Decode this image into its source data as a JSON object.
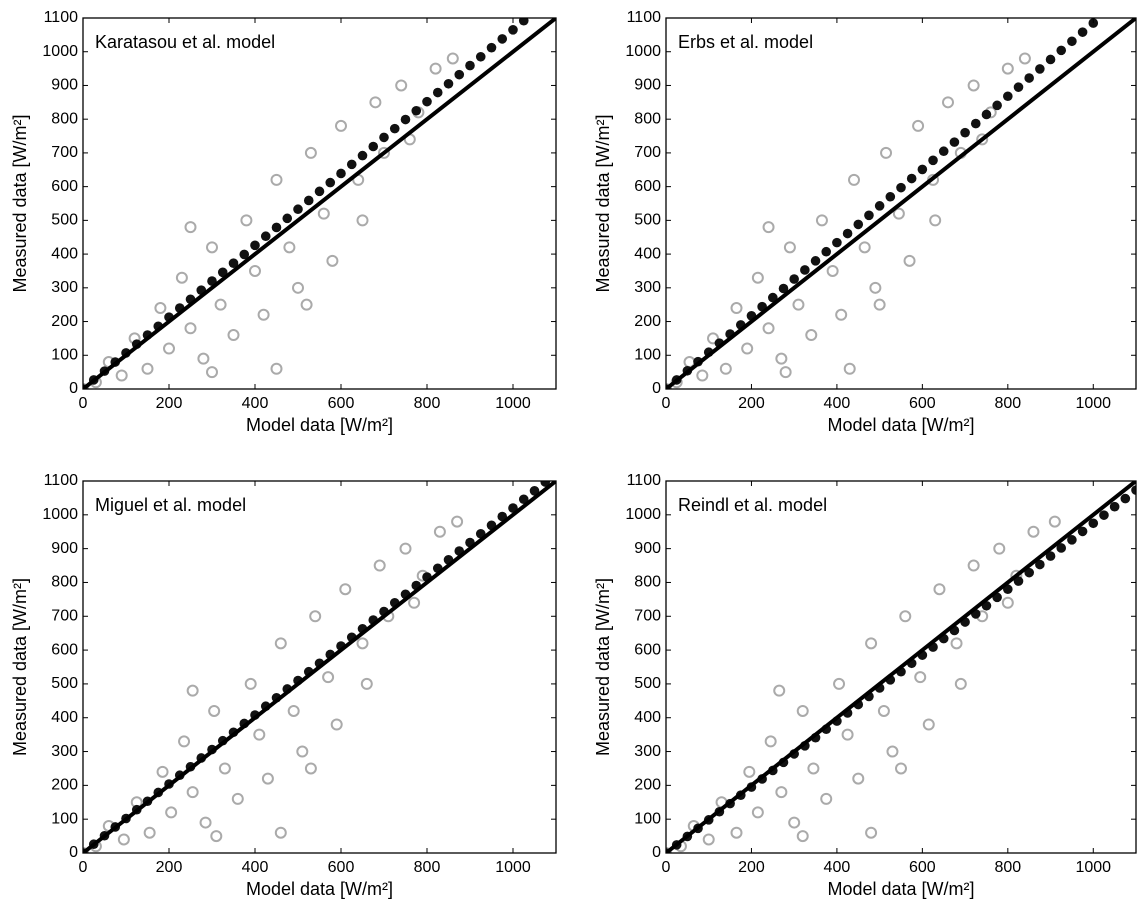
{
  "chart_data": [
    {
      "type": "scatter",
      "annotation": "Karatasou et al. model",
      "x_label": "Model data [W/m²]",
      "y_label": "Measured data [W/m²]",
      "xlim": [
        0,
        1100
      ],
      "ylim": [
        0,
        1100
      ],
      "xticks": [
        0,
        200,
        400,
        600,
        800,
        1000
      ],
      "yticks": [
        0,
        100,
        200,
        300,
        400,
        500,
        600,
        700,
        800,
        900,
        1000,
        1100
      ],
      "series": [
        {
          "style": "open-circle",
          "color": "#aaaaaa",
          "x": [
            0,
            30,
            60,
            90,
            120,
            150,
            180,
            200,
            230,
            250,
            280,
            300,
            320,
            350,
            380,
            400,
            420,
            450,
            480,
            500,
            530,
            560,
            580,
            600,
            640,
            680,
            700,
            740,
            780,
            820,
            860,
            450,
            300,
            760,
            250,
            520,
            650
          ],
          "values": [
            0,
            20,
            80,
            40,
            150,
            60,
            240,
            120,
            330,
            180,
            90,
            420,
            250,
            160,
            500,
            350,
            220,
            620,
            420,
            300,
            700,
            520,
            380,
            780,
            620,
            850,
            700,
            900,
            820,
            950,
            980,
            60,
            50,
            740,
            480,
            250,
            500
          ]
        },
        {
          "style": "filled-dot",
          "color": "#111111",
          "x": [
            0,
            25,
            50,
            75,
            100,
            125,
            150,
            175,
            200,
            225,
            250,
            275,
            300,
            325,
            350,
            375,
            400,
            425,
            450,
            475,
            500,
            525,
            550,
            575,
            600,
            625,
            650,
            675,
            700,
            725,
            750,
            775,
            800,
            825,
            850,
            875,
            900,
            925,
            950,
            975,
            1000,
            1025
          ],
          "values": [
            0,
            27,
            53,
            80,
            107,
            133,
            160,
            186,
            213,
            240,
            266,
            293,
            320,
            346,
            373,
            399,
            426,
            453,
            479,
            506,
            533,
            559,
            586,
            612,
            639,
            666,
            692,
            719,
            746,
            772,
            799,
            825,
            852,
            879,
            905,
            932,
            959,
            985,
            1012,
            1038,
            1065,
            1092
          ]
        },
        {
          "style": "solid-line",
          "color": "#000000",
          "x": [
            0,
            1100
          ],
          "values": [
            0,
            1100
          ]
        }
      ]
    },
    {
      "type": "scatter",
      "annotation": "Erbs et al. model",
      "x_label": "Model data [W/m²]",
      "y_label": "Measured data [W/m²]",
      "xlim": [
        0,
        1100
      ],
      "ylim": [
        0,
        1100
      ],
      "xticks": [
        0,
        200,
        400,
        600,
        800,
        1000
      ],
      "yticks": [
        0,
        100,
        200,
        300,
        400,
        500,
        600,
        700,
        800,
        900,
        1000,
        1100
      ],
      "series": [
        {
          "style": "open-circle",
          "color": "#aaaaaa",
          "x": [
            0,
            25,
            55,
            85,
            110,
            140,
            165,
            190,
            215,
            240,
            270,
            290,
            310,
            340,
            365,
            390,
            410,
            440,
            465,
            490,
            515,
            545,
            570,
            590,
            625,
            660,
            690,
            720,
            760,
            800,
            840,
            430,
            280,
            740,
            240,
            500,
            630
          ],
          "values": [
            0,
            20,
            80,
            40,
            150,
            60,
            240,
            120,
            330,
            180,
            90,
            420,
            250,
            160,
            500,
            350,
            220,
            620,
            420,
            300,
            700,
            520,
            380,
            780,
            620,
            850,
            700,
            900,
            820,
            950,
            980,
            60,
            50,
            740,
            480,
            250,
            500
          ]
        },
        {
          "style": "filled-dot",
          "color": "#111111",
          "x": [
            0,
            25,
            50,
            75,
            100,
            125,
            150,
            175,
            200,
            225,
            250,
            275,
            300,
            325,
            350,
            375,
            400,
            425,
            450,
            475,
            500,
            525,
            550,
            575,
            600,
            625,
            650,
            675,
            700,
            725,
            750,
            775,
            800,
            825,
            850,
            875,
            900,
            925,
            950,
            975,
            1000
          ],
          "values": [
            0,
            27,
            54,
            81,
            109,
            136,
            163,
            190,
            217,
            244,
            271,
            298,
            326,
            353,
            380,
            407,
            434,
            461,
            488,
            515,
            543,
            570,
            597,
            624,
            651,
            678,
            705,
            732,
            760,
            787,
            814,
            841,
            868,
            895,
            922,
            949,
            977,
            1004,
            1031,
            1058,
            1085
          ]
        },
        {
          "style": "solid-line",
          "color": "#000000",
          "x": [
            0,
            1100
          ],
          "values": [
            0,
            1100
          ]
        }
      ]
    },
    {
      "type": "scatter",
      "annotation": "Miguel et al. model",
      "x_label": "Model data [W/m²]",
      "y_label": "Measured data [W/m²]",
      "xlim": [
        0,
        1100
      ],
      "ylim": [
        0,
        1100
      ],
      "xticks": [
        0,
        200,
        400,
        600,
        800,
        1000
      ],
      "yticks": [
        0,
        100,
        200,
        300,
        400,
        500,
        600,
        700,
        800,
        900,
        1000,
        1100
      ],
      "series": [
        {
          "style": "open-circle",
          "color": "#aaaaaa",
          "x": [
            0,
            30,
            60,
            95,
            125,
            155,
            185,
            205,
            235,
            255,
            285,
            305,
            330,
            360,
            390,
            410,
            430,
            460,
            490,
            510,
            540,
            570,
            590,
            610,
            650,
            690,
            710,
            750,
            790,
            830,
            870,
            460,
            310,
            770,
            255,
            530,
            660
          ],
          "values": [
            0,
            20,
            80,
            40,
            150,
            60,
            240,
            120,
            330,
            180,
            90,
            420,
            250,
            160,
            500,
            350,
            220,
            620,
            420,
            300,
            700,
            520,
            380,
            780,
            620,
            850,
            700,
            900,
            820,
            950,
            980,
            60,
            50,
            740,
            480,
            250,
            500
          ]
        },
        {
          "style": "filled-dot",
          "color": "#111111",
          "x": [
            0,
            25,
            50,
            75,
            100,
            125,
            150,
            175,
            200,
            225,
            250,
            275,
            300,
            325,
            350,
            375,
            400,
            425,
            450,
            475,
            500,
            525,
            550,
            575,
            600,
            625,
            650,
            675,
            700,
            725,
            750,
            775,
            800,
            825,
            850,
            875,
            900,
            925,
            950,
            975,
            1000,
            1025,
            1050,
            1075
          ],
          "values": [
            0,
            26,
            51,
            77,
            102,
            128,
            153,
            179,
            204,
            230,
            255,
            281,
            306,
            332,
            357,
            383,
            408,
            434,
            459,
            485,
            510,
            536,
            561,
            587,
            612,
            638,
            663,
            689,
            714,
            740,
            765,
            791,
            816,
            842,
            867,
            893,
            918,
            944,
            969,
            995,
            1020,
            1046,
            1071,
            1097
          ]
        },
        {
          "style": "solid-line",
          "color": "#000000",
          "x": [
            0,
            1100
          ],
          "values": [
            0,
            1100
          ]
        }
      ]
    },
    {
      "type": "scatter",
      "annotation": "Reindl et al. model",
      "x_label": "Model data [W/m²]",
      "y_label": "Measured data [W/m²]",
      "xlim": [
        0,
        1100
      ],
      "ylim": [
        0,
        1100
      ],
      "xticks": [
        0,
        200,
        400,
        600,
        800,
        1000
      ],
      "yticks": [
        0,
        100,
        200,
        300,
        400,
        500,
        600,
        700,
        800,
        900,
        1000,
        1100
      ],
      "series": [
        {
          "style": "open-circle",
          "color": "#aaaaaa",
          "x": [
            0,
            35,
            65,
            100,
            130,
            165,
            195,
            215,
            245,
            270,
            300,
            320,
            345,
            375,
            405,
            425,
            450,
            480,
            510,
            530,
            560,
            595,
            615,
            640,
            680,
            720,
            740,
            780,
            820,
            860,
            910,
            480,
            320,
            800,
            265,
            550,
            690
          ],
          "values": [
            0,
            20,
            80,
            40,
            150,
            60,
            240,
            120,
            330,
            180,
            90,
            420,
            250,
            160,
            500,
            350,
            220,
            620,
            420,
            300,
            700,
            520,
            380,
            780,
            620,
            850,
            700,
            900,
            820,
            950,
            980,
            60,
            50,
            740,
            480,
            250,
            500
          ]
        },
        {
          "style": "filled-dot",
          "color": "#111111",
          "x": [
            0,
            25,
            50,
            75,
            100,
            125,
            150,
            175,
            200,
            225,
            250,
            275,
            300,
            325,
            350,
            375,
            400,
            425,
            450,
            475,
            500,
            525,
            550,
            575,
            600,
            625,
            650,
            675,
            700,
            725,
            750,
            775,
            800,
            825,
            850,
            875,
            900,
            925,
            950,
            975,
            1000,
            1025,
            1050,
            1075,
            1100
          ],
          "values": [
            0,
            24,
            49,
            73,
            98,
            122,
            146,
            171,
            195,
            219,
            244,
            268,
            293,
            317,
            341,
            366,
            390,
            414,
            439,
            463,
            488,
            512,
            536,
            561,
            585,
            609,
            634,
            658,
            683,
            707,
            731,
            756,
            780,
            804,
            829,
            853,
            878,
            902,
            926,
            951,
            975,
            999,
            1024,
            1048,
            1073
          ]
        },
        {
          "style": "solid-line",
          "color": "#000000",
          "x": [
            0,
            1100
          ],
          "values": [
            0,
            1100
          ]
        }
      ]
    }
  ]
}
